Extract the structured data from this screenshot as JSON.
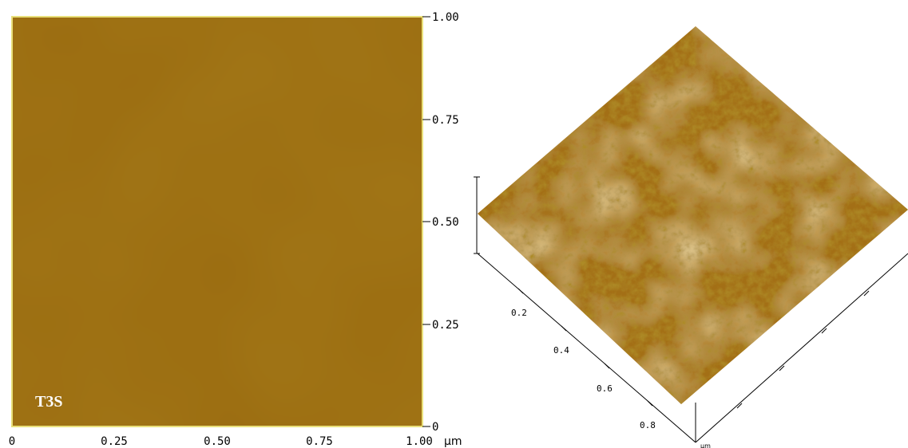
{
  "image_2d": {
    "sample_label": "T3S",
    "x_axis": {
      "ticks": [
        "0",
        "0.25",
        "0.50",
        "0.75",
        "1.00"
      ],
      "unit": "µm"
    },
    "y_axis": {
      "ticks": [
        "1.00",
        "0.75",
        "0.50",
        "0.25",
        "0"
      ]
    }
  },
  "view_3d": {
    "axis_ticks": [
      "0.2",
      "0.4",
      "0.6",
      "0.8"
    ],
    "unit": "µm"
  },
  "colors": {
    "afm_base": "#9b6c10",
    "afm_dark": "#7a4d08",
    "afm_light": "#d9b760",
    "frame_border": "#e9e07a"
  }
}
